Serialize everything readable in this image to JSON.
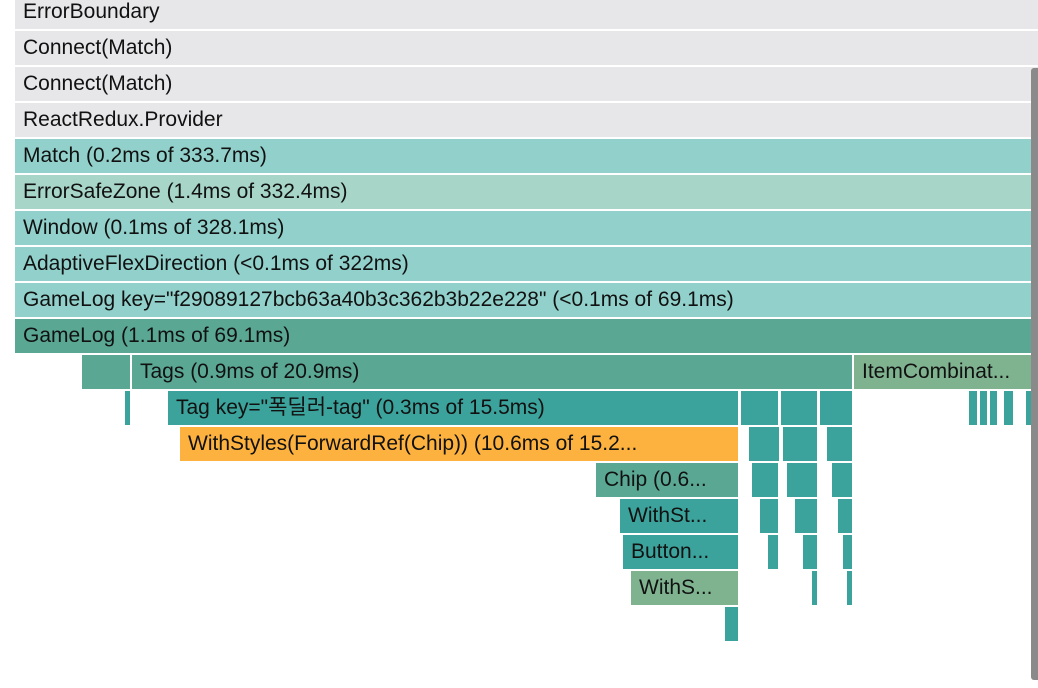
{
  "flamegraph": {
    "rows": [
      {
        "label": "ErrorBoundary",
        "color": "#e7e7ea"
      },
      {
        "label": "Connect(Match)",
        "color": "#e7e7ea"
      },
      {
        "label": "Connect(Match)",
        "color": "#e7e7ea"
      },
      {
        "label": "ReactRedux.Provider",
        "color": "#e7e7ea"
      },
      {
        "label": "Match (0.2ms of 333.7ms)",
        "color": "#92d1cb"
      },
      {
        "label": "ErrorSafeZone (1.4ms of 332.4ms)",
        "color": "#a7d6c8"
      },
      {
        "label": "Window (0.1ms of 328.1ms)",
        "color": "#92d1cb"
      },
      {
        "label": "AdaptiveFlexDirection (<0.1ms of 322ms)",
        "color": "#92d1cb"
      },
      {
        "label": "GameLog key=\"f29089127bcb63a40b3c362b3b22e228\" (<0.1ms of 69.1ms)",
        "color": "#92d1cb"
      },
      {
        "label": "GameLog (1.1ms of 69.1ms)",
        "color": "#5aa894"
      }
    ],
    "bars": [
      {
        "label": "",
        "color": "#5aa894"
      },
      {
        "label": "Tags (0.9ms of 20.9ms)",
        "color": "#5aa894"
      },
      {
        "label": "ItemCombinat...",
        "color": "#7fb390"
      },
      {
        "label": "",
        "color": "#3ba39c"
      },
      {
        "label": "Tag key=\"폭딜러-tag\" (0.3ms of 15.5ms)",
        "color": "#3ba39c"
      },
      {
        "label": "",
        "color": "#3ba39c"
      },
      {
        "label": "",
        "color": "#3ba39c"
      },
      {
        "label": "",
        "color": "#3ba39c"
      },
      {
        "label": "",
        "color": "#3ba39c"
      },
      {
        "label": "",
        "color": "#3ba39c"
      },
      {
        "label": "",
        "color": "#3ba39c"
      },
      {
        "label": "",
        "color": "#3ba39c"
      },
      {
        "label": "",
        "color": "#3ba39c"
      },
      {
        "label": "WithStyles(ForwardRef(Chip)) (10.6ms of 15.2...",
        "color": "#fdb23f"
      },
      {
        "label": "",
        "color": "#3ba39c"
      },
      {
        "label": "",
        "color": "#3ba39c"
      },
      {
        "label": "",
        "color": "#3ba39c"
      },
      {
        "label": "Chip (0.6...",
        "color": "#5aa894"
      },
      {
        "label": "",
        "color": "#3ba39c"
      },
      {
        "label": "",
        "color": "#3ba39c"
      },
      {
        "label": "",
        "color": "#3ba39c"
      },
      {
        "label": "WithSt...",
        "color": "#3ba39c"
      },
      {
        "label": "",
        "color": "#3ba39c"
      },
      {
        "label": "",
        "color": "#3ba39c"
      },
      {
        "label": "",
        "color": "#3ba39c"
      },
      {
        "label": "Button...",
        "color": "#3ba39c"
      },
      {
        "label": "",
        "color": "#3ba39c"
      },
      {
        "label": "",
        "color": "#3ba39c"
      },
      {
        "label": "",
        "color": "#3ba39c"
      },
      {
        "label": "WithS...",
        "color": "#7fb390"
      },
      {
        "label": "",
        "color": "#3ba39c"
      },
      {
        "label": "",
        "color": "#3ba39c"
      },
      {
        "label": "",
        "color": "#3ba39c"
      }
    ]
  }
}
